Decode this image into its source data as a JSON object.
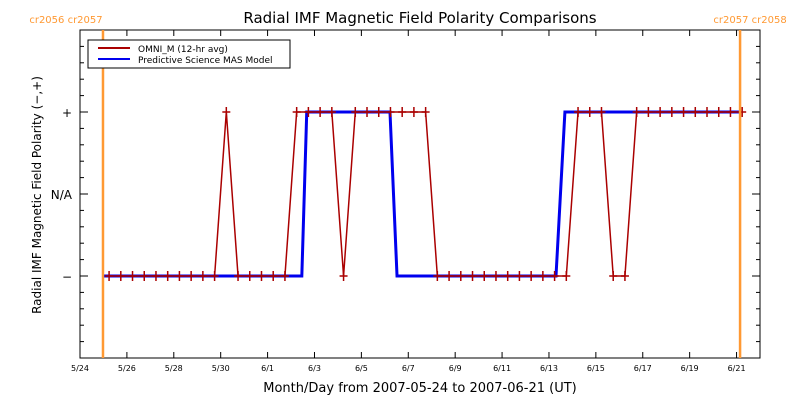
{
  "chart_data": {
    "type": "line",
    "title": "Radial IMF Magnetic Field Polarity Comparisons",
    "xlabel": "Month/Day from 2007-05-24 to 2007-06-21 (UT)",
    "ylabel": "Radial IMF Magnetic Field Polarity (−,+)",
    "x_start_date": "2007-05-24",
    "x_range_days": [
      0,
      29
    ],
    "x_ticks": [
      {
        "day": 0,
        "label": "5/24"
      },
      {
        "day": 2,
        "label": "5/26"
      },
      {
        "day": 4,
        "label": "5/28"
      },
      {
        "day": 6,
        "label": "5/30"
      },
      {
        "day": 8,
        "label": "6/1"
      },
      {
        "day": 10,
        "label": "6/3"
      },
      {
        "day": 12,
        "label": "6/5"
      },
      {
        "day": 14,
        "label": "6/7"
      },
      {
        "day": 16,
        "label": "6/9"
      },
      {
        "day": 18,
        "label": "6/11"
      },
      {
        "day": 20,
        "label": "6/13"
      },
      {
        "day": 22,
        "label": "6/15"
      },
      {
        "day": 24,
        "label": "6/17"
      },
      {
        "day": 26,
        "label": "6/19"
      },
      {
        "day": 28,
        "label": "6/21"
      }
    ],
    "y_range": [
      -2,
      2
    ],
    "y_ticks": [
      {
        "value": 1,
        "label": "+"
      },
      {
        "value": 0,
        "label": "N/A"
      },
      {
        "value": -1,
        "label": "−"
      }
    ],
    "legend": {
      "position": "top-left"
    },
    "series": [
      {
        "name": "OMNI_M (12-hr avg)",
        "color": "#aa0000",
        "markers": true,
        "x_start_day": 1.24,
        "x_step_day": 0.5,
        "values": [
          -1,
          -1,
          -1,
          -1,
          -1,
          -1,
          -1,
          -1,
          -1,
          -1,
          1,
          -1,
          -1,
          -1,
          -1,
          -1,
          1,
          1,
          1,
          1,
          -1,
          1,
          1,
          1,
          1,
          1,
          1,
          1,
          -1,
          -1,
          -1,
          -1,
          -1,
          -1,
          -1,
          -1,
          -1,
          -1,
          -1,
          -1,
          1,
          1,
          1,
          -1,
          -1,
          1,
          1,
          1,
          1,
          1,
          1,
          1,
          1,
          1,
          1
        ]
      },
      {
        "name": "Predictive Science MAS Model",
        "color": "#0000ee",
        "markers": false,
        "points": [
          {
            "day": 0.98,
            "value": -1
          },
          {
            "day": 9.46,
            "value": -1
          },
          {
            "day": 9.67,
            "value": 1
          },
          {
            "day": 13.22,
            "value": 1
          },
          {
            "day": 13.52,
            "value": -1
          },
          {
            "day": 20.3,
            "value": -1
          },
          {
            "day": 20.68,
            "value": 1
          },
          {
            "day": 28.15,
            "value": 1
          }
        ]
      }
    ],
    "vertical_markers": [
      {
        "day": 0.98,
        "color": "#ff9933",
        "label": "cr2056 cr2057",
        "label_side": "left"
      },
      {
        "day": 28.15,
        "color": "#ff9933",
        "label": "cr2057 cr2058",
        "label_side": "right"
      }
    ]
  }
}
